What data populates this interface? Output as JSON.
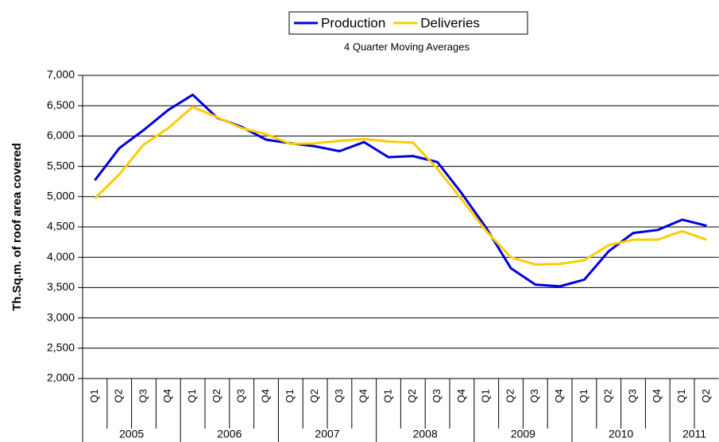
{
  "chart_data": {
    "type": "line",
    "subtitle": "4 Quarter Moving Averages",
    "y_label": "Th.Sq.m. of roof area covered",
    "categories": [
      "Q1",
      "Q2",
      "Q3",
      "Q4",
      "Q1",
      "Q2",
      "Q3",
      "Q4",
      "Q1",
      "Q2",
      "Q3",
      "Q4",
      "Q1",
      "Q2",
      "Q3",
      "Q4",
      "Q1",
      "Q2",
      "Q3",
      "Q4",
      "Q1",
      "Q2",
      "Q3",
      "Q4",
      "Q1",
      "Q2"
    ],
    "category_groups": [
      "2005",
      "2006",
      "2007",
      "2008",
      "2009",
      "2010",
      "2011"
    ],
    "series": [
      {
        "name": "Production",
        "color": "#0000dd",
        "values": [
          5270,
          5800,
          6100,
          6430,
          6680,
          6300,
          6150,
          5940,
          5880,
          5830,
          5750,
          5900,
          5650,
          5670,
          5570,
          5050,
          4480,
          3820,
          3550,
          3520,
          3630,
          4100,
          4400,
          4450,
          4620,
          4520
        ]
      },
      {
        "name": "Deliveries",
        "color": "#ffcc00",
        "values": [
          4970,
          5370,
          5860,
          6130,
          6480,
          6310,
          6130,
          6030,
          5870,
          5880,
          5920,
          5950,
          5910,
          5890,
          5460,
          4950,
          4430,
          4000,
          3880,
          3890,
          3950,
          4200,
          4290,
          4290,
          4430,
          4290
        ]
      }
    ],
    "ylim": [
      2000,
      7000
    ],
    "yticks": [
      {
        "value": 2000,
        "label": "2,000"
      },
      {
        "value": 2500,
        "label": "2,500"
      },
      {
        "value": 3000,
        "label": "3,000"
      },
      {
        "value": 3500,
        "label": "3,500"
      },
      {
        "value": 4000,
        "label": "4,000"
      },
      {
        "value": 4500,
        "label": "4,500"
      },
      {
        "value": 5000,
        "label": "5,000"
      },
      {
        "value": 5500,
        "label": "5,500"
      },
      {
        "value": 6000,
        "label": "6,000"
      },
      {
        "value": 6500,
        "label": "6,500"
      },
      {
        "value": 7000,
        "label": "7,000"
      }
    ],
    "grid": true,
    "legend": "top"
  }
}
